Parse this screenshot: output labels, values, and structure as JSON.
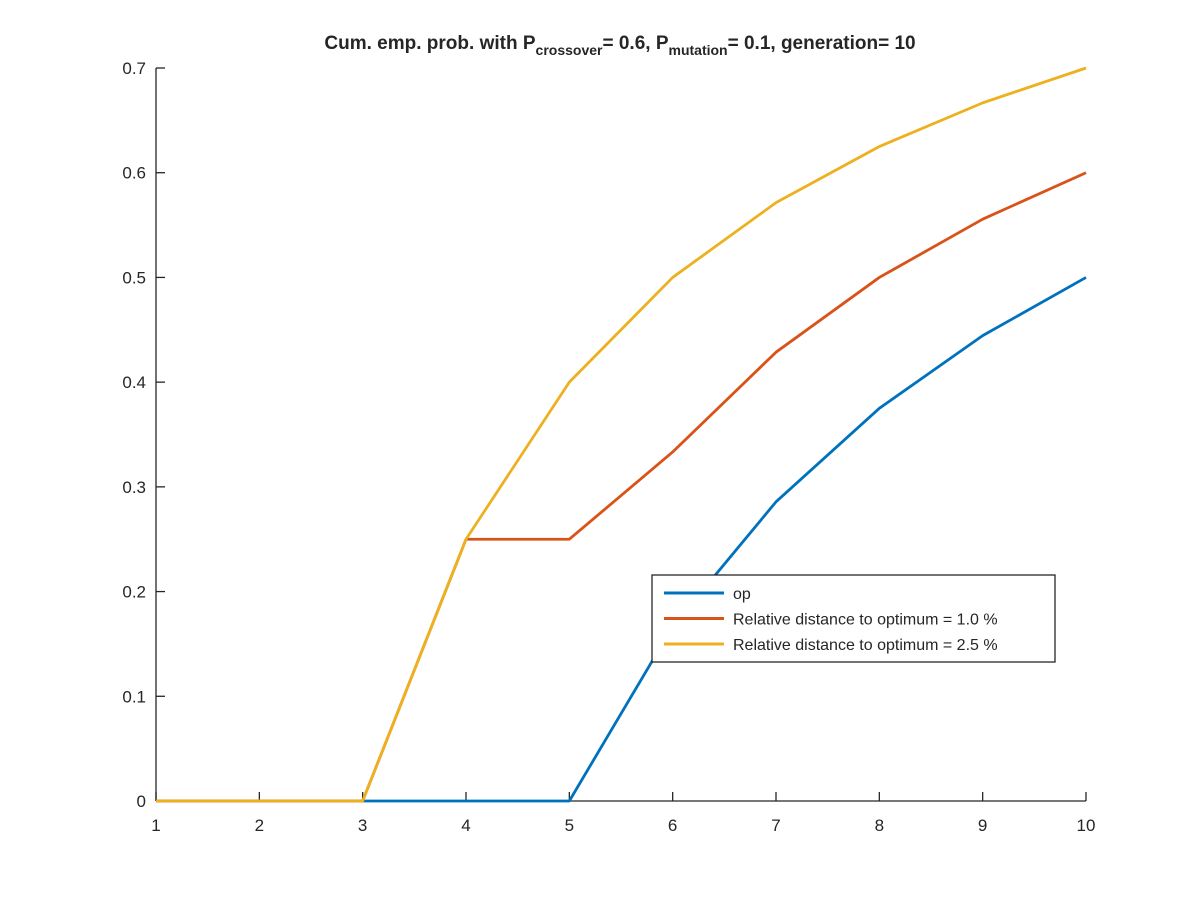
{
  "chart_data": {
    "type": "line",
    "title": {
      "part1": "Cum. emp. prob. with P",
      "sub1": "crossover",
      "part2": "= 0.6, P",
      "sub2": "mutation",
      "part3": "= 0.1, generation= 10"
    },
    "xlabel": "",
    "ylabel": "",
    "xlim": [
      1,
      10
    ],
    "ylim": [
      0,
      0.7
    ],
    "x": [
      1,
      2,
      3,
      4,
      5,
      6,
      7,
      8,
      9,
      10
    ],
    "xticks": [
      "1",
      "2",
      "3",
      "4",
      "5",
      "6",
      "7",
      "8",
      "9",
      "10"
    ],
    "yticks": [
      {
        "value": 0,
        "label": "0"
      },
      {
        "value": 0.1,
        "label": "0.1"
      },
      {
        "value": 0.2,
        "label": "0.2"
      },
      {
        "value": 0.3,
        "label": "0.3"
      },
      {
        "value": 0.4,
        "label": "0.4"
      },
      {
        "value": 0.5,
        "label": "0.5"
      },
      {
        "value": 0.6,
        "label": "0.6"
      },
      {
        "value": 0.7,
        "label": "0.7"
      }
    ],
    "grid": false,
    "legend_position": "lower-right",
    "series": [
      {
        "name": "op",
        "color": "#0072BD",
        "values": [
          0,
          0,
          0,
          0,
          0,
          0.1667,
          0.2857,
          0.375,
          0.4444,
          0.5
        ]
      },
      {
        "name": "Relative distance to optimum = 1.0 %",
        "color": "#D95319",
        "values": [
          0,
          0,
          0,
          0.25,
          0.25,
          0.3333,
          0.4286,
          0.5,
          0.5556,
          0.6
        ]
      },
      {
        "name": "Relative distance to optimum = 2.5 %",
        "color": "#EDB120",
        "values": [
          0,
          0,
          0,
          0.25,
          0.4,
          0.5,
          0.5714,
          0.625,
          0.6667,
          0.7
        ]
      }
    ]
  }
}
